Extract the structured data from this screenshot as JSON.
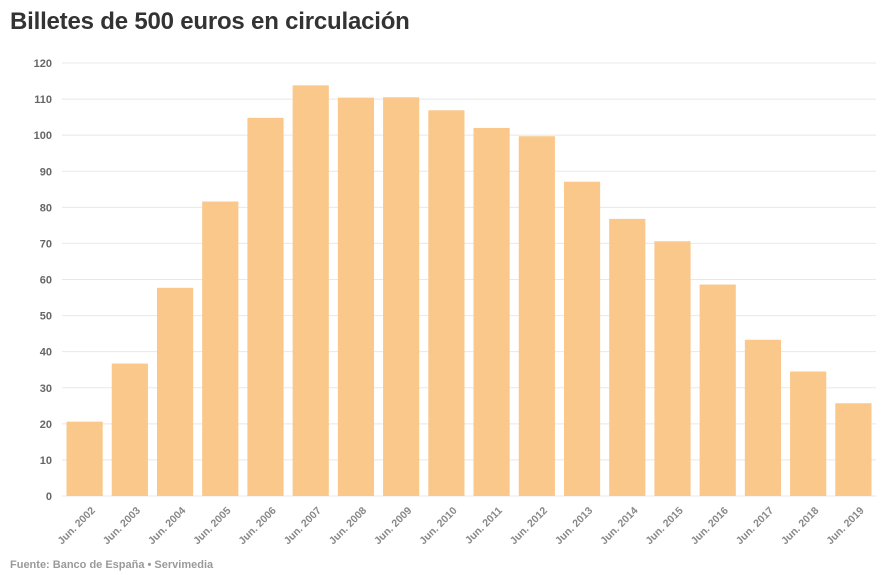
{
  "title": "Billetes de 500 euros en circulación",
  "source": "Fuente: Banco de España • Servimedia",
  "colors": {
    "bar": "#f9c88a",
    "grid": "#e8e8e8",
    "title": "#333333"
  },
  "chart_data": {
    "type": "bar",
    "title": "Billetes de 500 euros en circulación",
    "categories": [
      "Jun. 2002",
      "Jun. 2003",
      "Jun. 2004",
      "Jun. 2005",
      "Jun. 2006",
      "Jun. 2007",
      "Jun. 2008",
      "Jun. 2009",
      "Jun. 2010",
      "Jun. 2011",
      "Jun. 2012",
      "Jun. 2013",
      "Jun. 2014",
      "Jun. 2015",
      "Jun. 2016",
      "Jun. 2017",
      "Jun. 2018",
      "Jun. 2019"
    ],
    "values": [
      20.6,
      36.7,
      57.7,
      81.6,
      104.8,
      113.8,
      110.4,
      110.5,
      106.9,
      102.0,
      99.7,
      87.1,
      76.8,
      70.6,
      58.6,
      43.3,
      34.5,
      25.7
    ],
    "xlabel": "",
    "ylabel": "",
    "ylim": [
      0,
      120
    ],
    "yticks": [
      0,
      10,
      20,
      30,
      40,
      50,
      60,
      70,
      80,
      90,
      100,
      110,
      120
    ],
    "grid": true,
    "legend": "none"
  }
}
